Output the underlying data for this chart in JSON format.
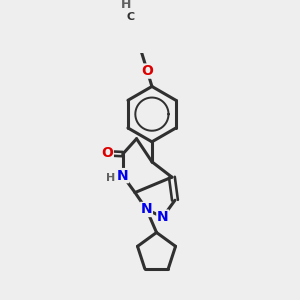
{
  "background_color": "#eeeeee",
  "bond_color": "#303030",
  "bond_width": 2.2,
  "atom_colors": {
    "N": "#0000ee",
    "O": "#dd0000",
    "C": "#303030",
    "H": "#606060"
  },
  "font_size_atom": 10,
  "font_size_H": 8
}
